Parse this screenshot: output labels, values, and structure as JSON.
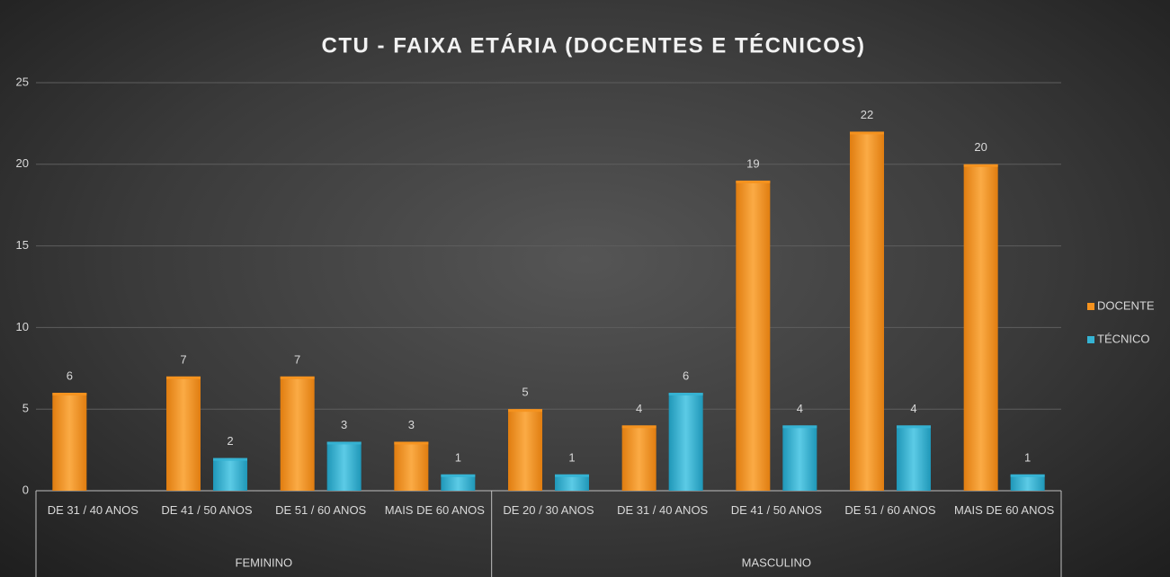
{
  "chart_data": {
    "type": "bar",
    "title": "CTU - FAIXA ETÁRIA (DOCENTES E TÉCNICOS)",
    "groups": [
      {
        "label": "FEMININO",
        "categories": [
          "DE 31 / 40 ANOS",
          "DE 41 / 50 ANOS",
          "DE 51 / 60 ANOS",
          "MAIS DE 60 ANOS"
        ]
      },
      {
        "label": "MASCULINO",
        "categories": [
          "DE 20 / 30 ANOS",
          "DE 31 / 40 ANOS",
          "DE 41 / 50 ANOS",
          "DE 51 / 60 ANOS",
          "MAIS DE 60 ANOS"
        ]
      }
    ],
    "series": [
      {
        "name": "DOCENTE",
        "color": "#f5921e",
        "values": [
          6,
          7,
          7,
          3,
          5,
          4,
          19,
          22,
          20
        ]
      },
      {
        "name": "TÉCNICO",
        "color": "#35b3d3",
        "values": [
          null,
          2,
          3,
          1,
          1,
          6,
          4,
          4,
          1
        ]
      }
    ],
    "ylim": [
      0,
      25
    ],
    "yticks": [
      0,
      5,
      10,
      15,
      20,
      25
    ],
    "grid": true,
    "legend": "right"
  }
}
